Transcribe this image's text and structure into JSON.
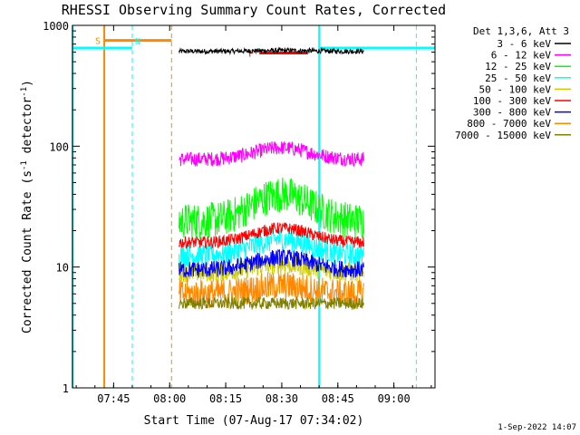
{
  "chart_data": {
    "type": "line",
    "title": "RHESSI Observing Summary Count Rates, Corrected",
    "xlabel": "Start Time (07-Aug-17 07:34:02)",
    "ylabel_main": "Corrected Count Rate (s",
    "ylabel_sup1": "-1",
    "ylabel_mid": " detector",
    "ylabel_sup2": "-1",
    "ylabel_end": ")",
    "y_scale": "log",
    "ylim": [
      1,
      1000
    ],
    "xlim_minutes": [
      0,
      97
    ],
    "x_ticks": [
      {
        "label": "07:45",
        "minutes": 11
      },
      {
        "label": "08:00",
        "minutes": 26
      },
      {
        "label": "08:15",
        "minutes": 41
      },
      {
        "label": "08:30",
        "minutes": 56
      },
      {
        "label": "08:45",
        "minutes": 71
      },
      {
        "label": "09:00",
        "minutes": 86
      }
    ],
    "y_ticks": [
      {
        "label": "1",
        "value": 1
      },
      {
        "label": "10",
        "value": 10
      },
      {
        "label": "100",
        "value": 100
      },
      {
        "label": "1000",
        "value": 1000
      }
    ],
    "legend_header": "Det 1,3,6, Att 3",
    "legend_position": "right",
    "series": [
      {
        "name": "3 - 6 keV",
        "color": "#000000",
        "start": 28.5,
        "end": 78,
        "base": 610,
        "peak": 620,
        "noise": 0.02
      },
      {
        "name": "6 - 12 keV",
        "color": "#ff00ff",
        "start": 28.5,
        "end": 78,
        "base": 78,
        "peak": 97,
        "noise": 0.06
      },
      {
        "name": "12 - 25 keV",
        "color": "#00ff00",
        "start": 28.5,
        "end": 78,
        "base": 24,
        "peak": 40,
        "noise": 0.15
      },
      {
        "name": "25 - 50 keV",
        "color": "#00ffff",
        "start": 28.5,
        "end": 78,
        "base": 12.5,
        "peak": 17,
        "noise": 0.1
      },
      {
        "name": "50 - 100 keV",
        "color": "#cccc00",
        "start": 28.5,
        "end": 78,
        "base": 9,
        "peak": 10.5,
        "noise": 0.08
      },
      {
        "name": "100 - 300 keV",
        "color": "#ff0000",
        "start": 28.5,
        "end": 78,
        "base": 16,
        "peak": 21,
        "noise": 0.05
      },
      {
        "name": "300 - 800 keV",
        "color": "#0000ff",
        "start": 28.5,
        "end": 78,
        "base": 9.5,
        "peak": 12,
        "noise": 0.07
      },
      {
        "name": "800 - 7000 keV",
        "color": "#ff8800",
        "start": 28.5,
        "end": 78,
        "base": 6,
        "peak": 7,
        "noise": 0.12
      },
      {
        "name": "7000 - 15000 keV",
        "color": "#808000",
        "start": 28.5,
        "end": 78,
        "base": 5,
        "peak": 5,
        "noise": 0.05
      }
    ],
    "annotations": {
      "saa_label": "S",
      "night_label": "N",
      "flare_label": "F",
      "orbit_color": "#00ffff",
      "saa_color": "#ff8800",
      "flare_color": "#ff0000",
      "saa_bar": {
        "start": 8.5,
        "end": 26.5,
        "value": 750
      },
      "night_bars": [
        {
          "start": 0,
          "end": 16,
          "value": 650
        },
        {
          "start": 66,
          "end": 97,
          "value": 650
        }
      ],
      "flare_bar": {
        "start": 50,
        "end": 63,
        "value": 590
      },
      "solid_cyan_lines": [
        0,
        66
      ],
      "dashed_cyan_lines": [
        16,
        92
      ],
      "solid_orange_lines": [
        8.5
      ],
      "dashed_orange_lines": [
        26.5
      ]
    }
  },
  "footer": {
    "timestamp": "1-Sep-2022 14:07"
  }
}
